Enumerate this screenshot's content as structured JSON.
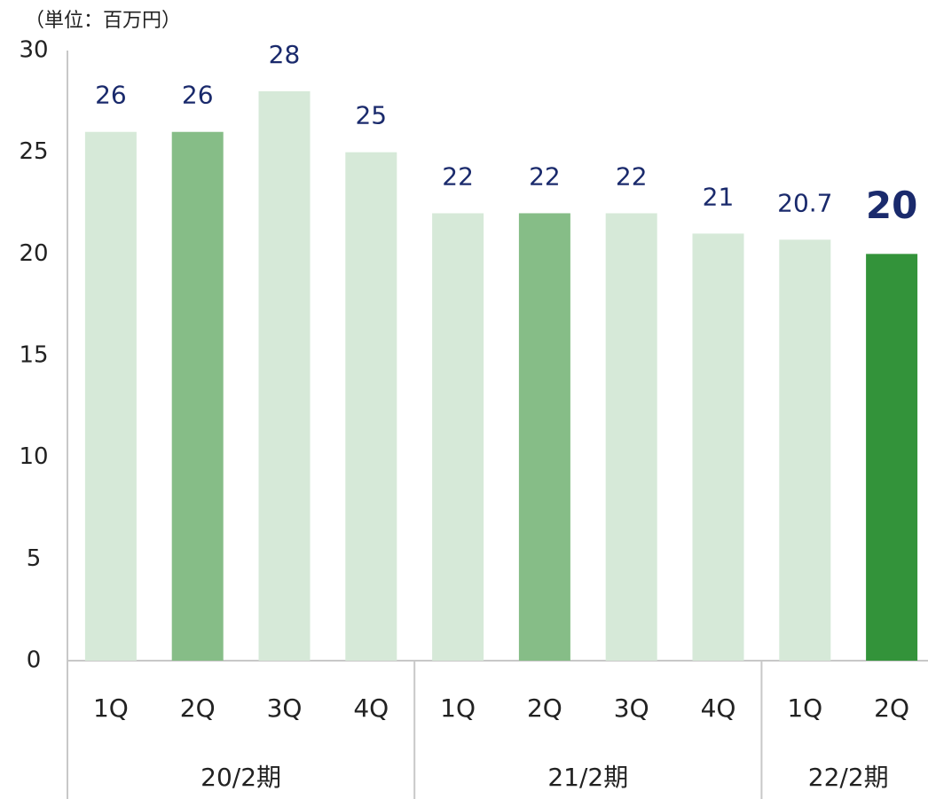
{
  "chart_data": {
    "type": "bar",
    "unit_label": "（単位：百万円）",
    "categories": [
      "1Q",
      "2Q",
      "3Q",
      "4Q",
      "1Q",
      "2Q",
      "3Q",
      "4Q",
      "1Q",
      "2Q"
    ],
    "groups": [
      {
        "label": "20/2期",
        "size": 4
      },
      {
        "label": "21/2期",
        "size": 4
      },
      {
        "label": "22/2期",
        "size": 2
      }
    ],
    "values": [
      26,
      26,
      28,
      25,
      22,
      22,
      22,
      21,
      20.7,
      20
    ],
    "colors": [
      "#d6e9d8",
      "#86bd87",
      "#d6e9d8",
      "#d6e9d8",
      "#d6e9d8",
      "#86bd87",
      "#d6e9d8",
      "#d6e9d8",
      "#d6e9d8",
      "#33933a"
    ],
    "emphasized": [
      9
    ],
    "ylim": [
      0,
      30
    ],
    "yticks": [
      0,
      5,
      10,
      15,
      20,
      25,
      30
    ],
    "grid": false
  }
}
